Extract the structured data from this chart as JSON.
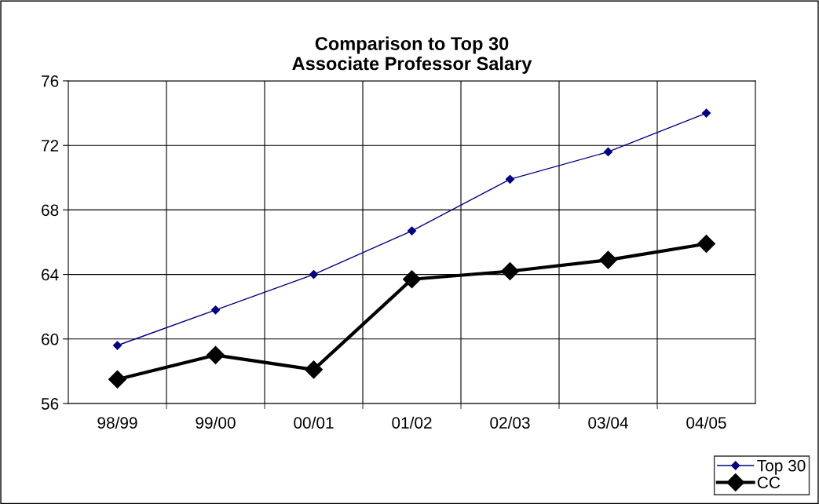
{
  "chart_data": {
    "type": "line",
    "title": "Comparison to Top 30\nAssociate Professor Salary",
    "categories": [
      "98/99",
      "99/00",
      "00/01",
      "01/02",
      "02/03",
      "03/04",
      "04/05"
    ],
    "series": [
      {
        "name": "Top 30",
        "color": "#000080",
        "values": [
          59.6,
          61.8,
          64.0,
          66.7,
          69.9,
          71.6,
          74.0
        ]
      },
      {
        "name": "CC",
        "color": "#000000",
        "values": [
          57.5,
          59.0,
          58.1,
          63.7,
          64.2,
          64.9,
          65.9
        ]
      }
    ],
    "ylim": [
      56,
      76
    ],
    "yticks": [
      56,
      60,
      64,
      68,
      72,
      76
    ],
    "grid": true,
    "legend": "bottom right",
    "marker": "diamond",
    "line_style": "solid"
  }
}
